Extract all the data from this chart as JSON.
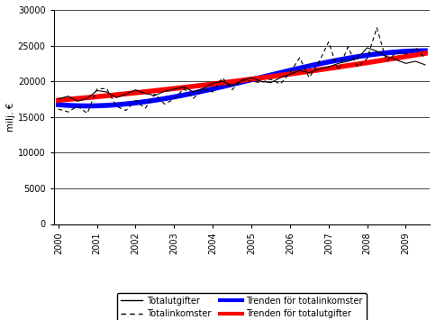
{
  "ylabel": "milj. €",
  "ylim": [
    0,
    30000
  ],
  "yticks": [
    0,
    5000,
    10000,
    15000,
    20000,
    25000,
    30000
  ],
  "years": [
    2000.0,
    2000.25,
    2000.5,
    2000.75,
    2001.0,
    2001.25,
    2001.5,
    2001.75,
    2002.0,
    2002.25,
    2002.5,
    2002.75,
    2003.0,
    2003.25,
    2003.5,
    2003.75,
    2004.0,
    2004.25,
    2004.5,
    2004.75,
    2005.0,
    2005.25,
    2005.5,
    2005.75,
    2006.0,
    2006.25,
    2006.5,
    2006.75,
    2007.0,
    2007.25,
    2007.5,
    2007.75,
    2008.0,
    2008.25,
    2008.5,
    2008.75,
    2009.0,
    2009.25,
    2009.5
  ],
  "totalutgifter": [
    17500,
    17900,
    17200,
    17600,
    18700,
    18500,
    17700,
    18200,
    18800,
    18300,
    18000,
    18600,
    18900,
    19200,
    18500,
    19000,
    19700,
    20000,
    19400,
    20100,
    20500,
    20000,
    19800,
    20500,
    21000,
    21500,
    21200,
    21700,
    22000,
    22500,
    22800,
    23200,
    24700,
    24200,
    23500,
    23000,
    22500,
    22800,
    22300
  ],
  "totalinkomster": [
    16100,
    15700,
    16500,
    15500,
    18900,
    19000,
    16500,
    15900,
    17300,
    16200,
    18200,
    16800,
    17500,
    19000,
    17600,
    18900,
    18500,
    20500,
    18800,
    20200,
    20000,
    19800,
    20300,
    19600,
    21200,
    23300,
    20500,
    22700,
    25500,
    21500,
    24800,
    22000,
    23200,
    27500,
    22800,
    24000,
    23800,
    24700,
    23200
  ],
  "xlim": [
    1999.88,
    2009.62
  ],
  "xtick_positions": [
    2000,
    2001,
    2002,
    2003,
    2004,
    2005,
    2006,
    2007,
    2008,
    2009
  ],
  "legend": {
    "totalutgifter_label": "Totalutgifter",
    "totalinkomster_label": "Totalinkomster",
    "trend_ink_label": "Trenden för totalinkomster",
    "trend_utg_label": "Trenden för totalutgifter"
  },
  "colors": {
    "totalutgifter": "#000000",
    "totalinkomster": "#000000",
    "trend_ink": "#0000FF",
    "trend_utg": "#FF0000"
  },
  "background": "#FFFFFF",
  "figsize": [
    4.84,
    3.55
  ],
  "dpi": 100
}
